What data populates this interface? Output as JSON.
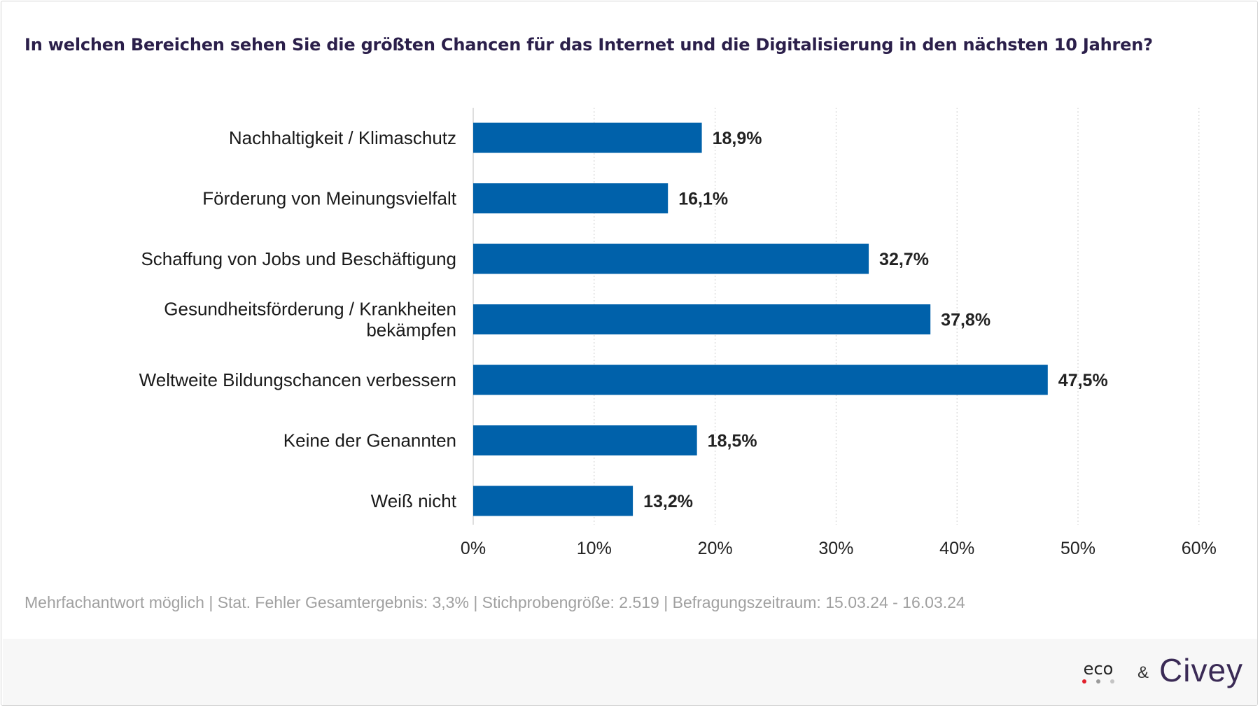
{
  "chart_data": {
    "type": "bar",
    "orientation": "horizontal",
    "title": "In welchen Bereichen sehen Sie die größten Chancen für das Internet und die Digitalisierung in den nächsten 10 Jahren?",
    "categories": [
      [
        "Nachhaltigkeit / Klimaschutz"
      ],
      [
        "Förderung von Meinungsvielfalt"
      ],
      [
        "Schaffung von Jobs und Beschäftigung"
      ],
      [
        "Gesundheitsförderung / Krankheiten",
        "bekämpfen"
      ],
      [
        "Weltweite Bildungschancen verbessern"
      ],
      [
        "Keine der Genannten"
      ],
      [
        "Weiß nicht"
      ]
    ],
    "values": [
      18.9,
      16.1,
      32.7,
      37.8,
      47.5,
      18.5,
      13.2
    ],
    "value_labels": [
      "18,9%",
      "16,1%",
      "32,7%",
      "37,8%",
      "47,5%",
      "18,5%",
      "13,2%"
    ],
    "xlim": [
      0,
      60
    ],
    "x_ticks": [
      0,
      10,
      20,
      30,
      40,
      50,
      60
    ],
    "x_tick_labels": [
      "0%",
      "10%",
      "20%",
      "30%",
      "40%",
      "50%",
      "60%"
    ],
    "grid": "vertical dotted",
    "bar_color": "#0061aa"
  },
  "footnote": "Mehrfachantwort möglich | Stat. Fehler Gesamtergebnis: 3,3% | Stichprobengröße: 2.519 | Befragungszeitraum: 15.03.24 - 16.03.24",
  "branding": {
    "logo_eco": "eco",
    "ampersand": "&",
    "logo_civey": "Civey",
    "eco_dot_colors": [
      "#e2202c",
      "#9a9a9a",
      "#c4c4c4"
    ]
  }
}
